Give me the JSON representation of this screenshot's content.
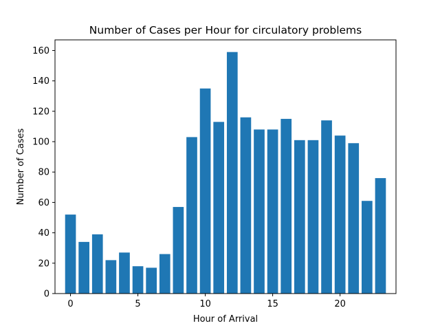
{
  "chart_data": {
    "type": "bar",
    "title": "Number of Cases per Hour for circulatory problems",
    "xlabel": "Hour of Arrival",
    "ylabel": "Number of Cases",
    "categories": [
      0,
      1,
      2,
      3,
      4,
      5,
      6,
      7,
      8,
      9,
      10,
      11,
      12,
      13,
      14,
      15,
      16,
      17,
      18,
      19,
      20,
      21,
      22,
      23
    ],
    "values": [
      52,
      34,
      39,
      22,
      27,
      18,
      17,
      26,
      57,
      103,
      135,
      113,
      159,
      116,
      108,
      108,
      115,
      101,
      101,
      114,
      104,
      99,
      61,
      76
    ],
    "x_ticks": [
      "0",
      "5",
      "10",
      "15",
      "20"
    ],
    "y_ticks": [
      "0",
      "20",
      "40",
      "60",
      "80",
      "100",
      "120",
      "140",
      "160"
    ],
    "xlim": [
      -1.15,
      24.15
    ],
    "ylim": [
      0,
      167
    ],
    "bar_color": "#1f77b4",
    "grid": false
  }
}
